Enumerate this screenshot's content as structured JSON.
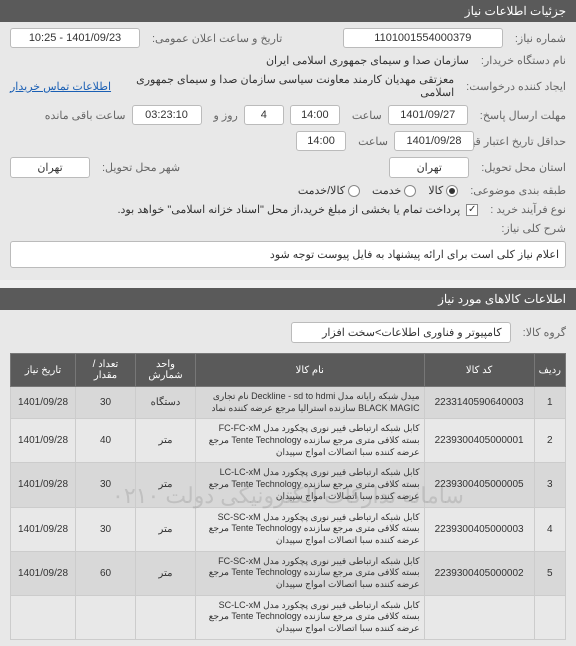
{
  "header": {
    "title_right": "جزئیات اطلاعات نیاز",
    "title_left": ""
  },
  "fields": {
    "need_number_label": "شماره نیاز:",
    "need_number": "1101001554000379",
    "announce_label": "تاریخ و ساعت اعلان عمومی:",
    "announce_value": "1401/09/23 - 10:25",
    "buyer_label": "نام دستگاه خریدار:",
    "buyer_value": "سازمان صدا و سیمای جمهوری اسلامی ایران",
    "creator_label": "ایجاد کننده درخواست:",
    "creator_value": "معزتقی مهدیان کارمند معاونت سیاسی سازمان صدا و سیمای جمهوری اسلامی",
    "contact_link": "اطلاعات تماس خریدار",
    "deadline_label": "مهلت ارسال پاسخ:",
    "deadline_date": "1401/09/27",
    "deadline_time_label": "ساعت",
    "deadline_time": "14:00",
    "days_label": "روز و",
    "days_value": "4",
    "remaining_label": "ساعت باقی مانده",
    "remaining_value": "03:23:10",
    "validity_label": "حداقل تاریخ اعتبار قیمت تا تاریخ:",
    "validity_date": "1401/09/28",
    "validity_time": "14:00",
    "province_label": "استان محل تحویل:",
    "province_value": "تهران",
    "city_label": "شهر محل تحویل:",
    "city_value": "تهران",
    "category_label": "طبقه بندی موضوعی:",
    "cat_goods": "کالا",
    "cat_service": "خدمت",
    "cat_both": "کالا/خدمت",
    "purchase_label": "نوع فرآیند خرید :",
    "purchase_note": "پرداخت تمام یا بخشی از مبلغ خرید،از محل \"اسناد خزانه اسلامی\" خواهد بود.",
    "desc_label": "شرح کلی نیاز:",
    "desc_text": "اعلام نیاز کلی است برای ارائه پیشنهاد به فایل پیوست  توجه  شود"
  },
  "section2": {
    "title": "اطلاعات کالاهای مورد نیاز",
    "group_label": "گروه کالا:",
    "group_value": "کامپیوتر و فناوری اطلاعات>سخت افزار"
  },
  "table": {
    "headers": [
      "ردیف",
      "کد کالا",
      "نام کالا",
      "واحد شمارش",
      "تعداد / مقدار",
      "تاریخ نیاز"
    ],
    "rows": [
      {
        "n": "1",
        "code": "2233140590640003",
        "name": "میدل شبکه رایانه مدل Deckline - sd to hdmi نام تجاری BLACK MAGIC سازنده استرالیا مرجع عرضه کننده نماد",
        "unit": "دستگاه",
        "qty": "30",
        "date": "1401/09/28"
      },
      {
        "n": "2",
        "code": "2239300405000001",
        "name": "کابل شبکه ارتباطی فیبر نوری پچکورد مدل FC-FC-xM بسته کلافی متری مرجع سازنده Tente Technology مرجع عرضه کننده سبا اتصالات امواج سپیدان",
        "unit": "متر",
        "qty": "40",
        "date": "1401/09/28"
      },
      {
        "n": "3",
        "code": "2239300405000005",
        "name": "کابل شبکه ارتباطی فیبر نوری پچکورد مدل LC-LC-xM بسته کلافی متری مرجع سازنده Tente Technology مرجع عرضه کننده سبا اتصالات امواج سپیدان",
        "unit": "متر",
        "qty": "30",
        "date": "1401/09/28"
      },
      {
        "n": "4",
        "code": "2239300405000003",
        "name": "کابل شبکه ارتباطی فیبر نوری پچکورد مدل SC-SC-xM بسته کلافی متری مرجع سازنده Tente Technology مرجع عرضه کننده سبا اتصالات امواج سپیدان",
        "unit": "متر",
        "qty": "30",
        "date": "1401/09/28"
      },
      {
        "n": "5",
        "code": "2239300405000002",
        "name": "کابل شبکه ارتباطی فیبر نوری پچکورد مدل FC-SC-xM بسته کلافی متری مرجع سازنده Tente Technology مرجع عرضه کننده سبا اتصالات امواج سپیدان",
        "unit": "متر",
        "qty": "60",
        "date": "1401/09/28"
      },
      {
        "n": "",
        "code": "",
        "name": "کابل شبکه ارتباطی فیبر نوری پچکورد مدل SC-LC-xM بسته کلافی متری مرجع سازنده Tente Technology مرجع عرضه کننده سبا اتصالات امواج سپیدان",
        "unit": "",
        "qty": "",
        "date": ""
      }
    ],
    "watermark": "سامانه تدارکات الکترونیکی دولت ۰۲۱۰"
  },
  "colors": {
    "header_bg": "#5a5a5a",
    "row_bg": "#e8e8e8",
    "alt_row": "#d8d8d8",
    "text": "#333333",
    "link": "#1a5fb4",
    "border": "#bbbbbb"
  }
}
